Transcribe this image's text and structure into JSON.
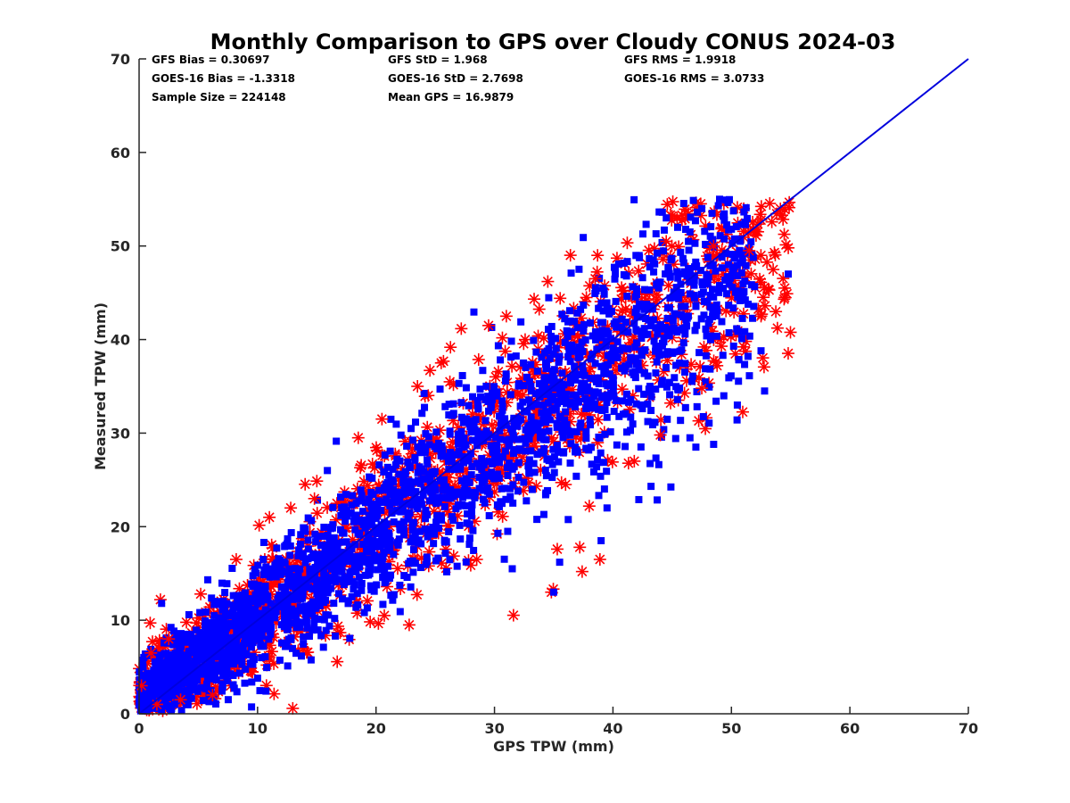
{
  "chart_data": {
    "type": "scatter",
    "title": "Monthly Comparison to GPS over Cloudy CONUS 2024-03",
    "xlabel": "GPS TPW (mm)",
    "ylabel": "Measured TPW (mm)",
    "xlim": [
      0,
      70
    ],
    "ylim": [
      0,
      70
    ],
    "xticks": [
      "0",
      "10",
      "20",
      "30",
      "40",
      "50",
      "60",
      "70"
    ],
    "yticks": [
      "0",
      "10",
      "20",
      "30",
      "40",
      "50",
      "60",
      "70"
    ],
    "grid": false,
    "stats": [
      "GFS Bias = 0.30697",
      "GOES-16 Bias = -1.3318",
      "Sample Size = 224148",
      "GFS StD = 1.968",
      "GOES-16 StD = 2.7698",
      "Mean GPS = 16.9879",
      "GFS RMS = 1.9918",
      "GOES-16 RMS = 3.0733"
    ],
    "series": [
      {
        "marker": "asterisk",
        "color": "#ff0000",
        "cloud": {
          "x_range": [
            0,
            55
          ],
          "slope": 0.95,
          "spread": 2.2
        },
        "points": [
          [
            1.8,
            12.2
          ],
          [
            5.2,
            12.8
          ],
          [
            8.2,
            16.5
          ],
          [
            11.0,
            21.0
          ],
          [
            12.8,
            22.0
          ],
          [
            14.8,
            23.0
          ],
          [
            18.5,
            29.5
          ],
          [
            20.5,
            31.5
          ],
          [
            23.5,
            35.0
          ],
          [
            25.5,
            37.5
          ],
          [
            29.5,
            41.5
          ],
          [
            31.0,
            42.5
          ],
          [
            34.5,
            46.2
          ],
          [
            38.5,
            46.5
          ],
          [
            44.5,
            50.5
          ],
          [
            48.5,
            50.0
          ],
          [
            51.5,
            49.5
          ],
          [
            52.5,
            42.5
          ],
          [
            54.8,
            49.8
          ],
          [
            54.5,
            45.5
          ],
          [
            54.5,
            44.5
          ],
          [
            47.5,
            34.8
          ],
          [
            44.0,
            29.8
          ],
          [
            41.8,
            27.0
          ],
          [
            35.3,
            17.6
          ],
          [
            37.2,
            17.8
          ],
          [
            37.4,
            15.2
          ],
          [
            38.9,
            16.5
          ],
          [
            34.8,
            13.0
          ],
          [
            28.5,
            16.5
          ],
          [
            22.8,
            9.5
          ],
          [
            20.7,
            10.5
          ],
          [
            38.0,
            22.2
          ],
          [
            36.0,
            24.5
          ],
          [
            6.2,
            2.0
          ],
          [
            3.5,
            1.5
          ],
          [
            1.5,
            1.0
          ],
          [
            0.2,
            3.0
          ],
          [
            1.0,
            6.5
          ],
          [
            2.5,
            8.0
          ]
        ]
      },
      {
        "marker": "square",
        "color": "#0000ff",
        "cloud": {
          "x_range": [
            0,
            52
          ],
          "slope": 0.92,
          "spread": 2.0
        },
        "points": [
          [
            1.9,
            11.8
          ],
          [
            35.0,
            13.0
          ],
          [
            35.5,
            16.2
          ],
          [
            39.0,
            18.5
          ],
          [
            31.5,
            15.5
          ],
          [
            46.5,
            29.5
          ],
          [
            48.5,
            28.8
          ],
          [
            47.0,
            28.5
          ],
          [
            50.5,
            33.0
          ],
          [
            52.8,
            34.5
          ],
          [
            52.5,
            38.8
          ],
          [
            47.5,
            54.0
          ],
          [
            44.5,
            53.0
          ],
          [
            46.5,
            51.5
          ],
          [
            50.0,
            51.8
          ],
          [
            54.8,
            47.0
          ],
          [
            7.0,
            2.5
          ],
          [
            10.0,
            3.8
          ],
          [
            3.0,
            1.0
          ],
          [
            39.5,
            22.0
          ]
        ]
      }
    ],
    "reference_line": {
      "color": "#0000dd",
      "from": [
        0,
        0
      ],
      "to": [
        70,
        70
      ]
    }
  }
}
